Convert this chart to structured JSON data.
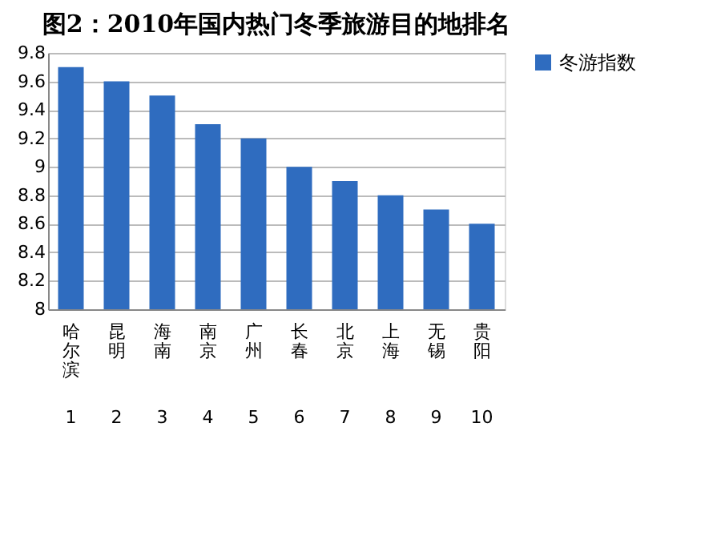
{
  "chart_data": {
    "type": "bar",
    "title": "图2：2010年国内热门冬季旅游目的地排名",
    "categories": [
      "哈尔滨",
      "昆明",
      "海南",
      "南京",
      "广州",
      "长春",
      "北京",
      "上海",
      "无锡",
      "贵阳"
    ],
    "series": [
      {
        "name": "冬游指数",
        "color": "#2f6cbf",
        "values": [
          9.7,
          9.6,
          9.5,
          9.3,
          9.2,
          9.0,
          8.9,
          8.8,
          8.7,
          8.6
        ]
      }
    ],
    "ylim": [
      8,
      9.8
    ],
    "yticks": [
      8,
      8.2,
      8.4,
      8.6,
      8.8,
      9,
      9.2,
      9.4,
      9.6,
      9.8
    ],
    "grid": "y",
    "legend": "right",
    "annotations": [
      "1",
      "2",
      "3",
      "4",
      "5",
      "6",
      "7",
      "8",
      "9",
      "10"
    ]
  }
}
